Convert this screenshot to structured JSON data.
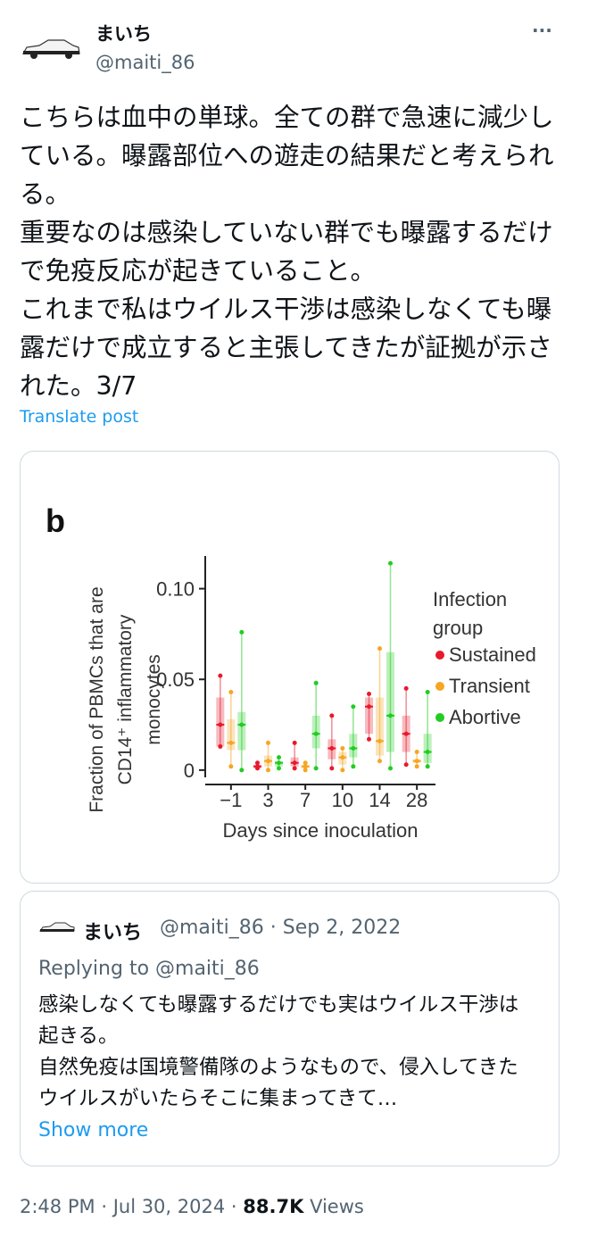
{
  "author": {
    "name": "まいち",
    "handle": "@maiti_86",
    "more": "···"
  },
  "body": {
    "paragraphs": [
      "こちらは血中の単球。全ての群で急速に減少している。曝露部位への遊走の結果だと考えられる。",
      "重要なのは感染していない群でも曝露するだけで免疫反応が起きていること。",
      "これまで私はウイルス干渉は感染しなくても曝露だけで成立すると主張してきたが証拠が示された。3/7"
    ]
  },
  "translate": "Translate post",
  "chart_data": {
    "type": "box",
    "panel_label": "b",
    "y_label": "Fraction of PBMCs that are CD14⁺ inflammatory monocytes",
    "x_label": "Days since inoculation",
    "categories": [
      "−1",
      "3",
      "7",
      "10",
      "14",
      "28"
    ],
    "ylim": [
      -0.004,
      0.118
    ],
    "yticks": [
      0,
      0.05,
      {
        "value": 0.1,
        "label": "0.10"
      }
    ],
    "legend_title": "Infection group",
    "series": [
      {
        "name": "Sustained",
        "color": "#e8192c",
        "low": [
          0.013,
          0.001,
          0.001,
          0.001,
          0.017,
          0.003
        ],
        "q1": [
          0.013,
          0.001,
          0.002,
          0.006,
          0.02,
          0.01
        ],
        "median": [
          0.025,
          0.002,
          0.004,
          0.012,
          0.035,
          0.02
        ],
        "q3": [
          0.04,
          0.003,
          0.007,
          0.017,
          0.04,
          0.03
        ],
        "high": [
          0.052,
          0.004,
          0.015,
          0.03,
          0.042,
          0.045
        ]
      },
      {
        "name": "Transient",
        "color": "#f5a623",
        "low": [
          0.002,
          0,
          0,
          0,
          0.005,
          0.002
        ],
        "q1": [
          0.011,
          0.002,
          0.001,
          0.003,
          0.008,
          0.004
        ],
        "median": [
          0.015,
          0.005,
          0.002,
          0.007,
          0.016,
          0.005
        ],
        "q3": [
          0.028,
          0.008,
          0.003,
          0.01,
          0.04,
          0.006
        ],
        "high": [
          0.043,
          0.015,
          0.004,
          0.012,
          0.067,
          0.01
        ]
      },
      {
        "name": "Abortive",
        "color": "#22cc22",
        "low": [
          0,
          0.001,
          0.001,
          0.002,
          0.001,
          0.002
        ],
        "q1": [
          0.011,
          0.002,
          0.012,
          0.007,
          0.01,
          0.004
        ],
        "median": [
          0.025,
          0.004,
          0.02,
          0.012,
          0.03,
          0.01
        ],
        "q3": [
          0.032,
          0.005,
          0.03,
          0.02,
          0.065,
          0.02
        ],
        "high": [
          0.076,
          0.007,
          0.048,
          0.035,
          0.114,
          0.043
        ]
      }
    ]
  },
  "quote": {
    "name": "まいち",
    "handle": "@maiti_86",
    "separator": "·",
    "date": "Sep 2, 2022",
    "replying": "Replying to @maiti_86",
    "lines": [
      "感染しなくても曝露するだけでも実はウイルス干渉は起きる。",
      "自然免疫は国境警備隊のようなもので、侵入してきたウイルスがいたらそこに集まってきて…"
    ],
    "show_more": "Show more"
  },
  "footer": {
    "time": "2:48 PM",
    "separator": "·",
    "date": "Jul 30, 2024",
    "views": "88.7K",
    "views_label": "Views"
  }
}
